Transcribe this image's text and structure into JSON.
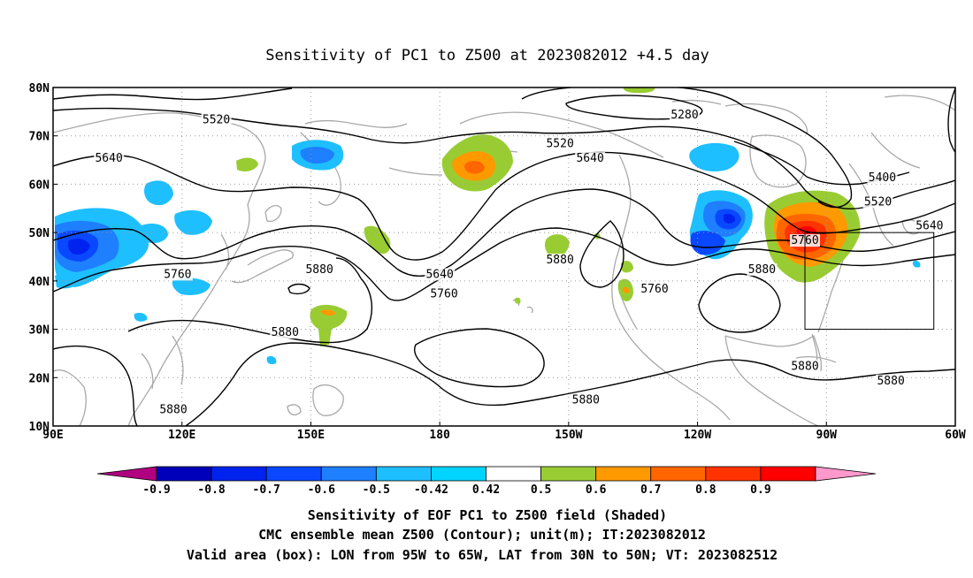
{
  "title": "Sensitivity of PC1 to Z500 at 2023082012 +4.5 day",
  "map": {
    "lon_range": [
      90,
      300
    ],
    "lat_range": [
      10,
      80
    ],
    "lat_ticks": [
      {
        "value": 80,
        "label": "80N"
      },
      {
        "value": 70,
        "label": "70N"
      },
      {
        "value": 60,
        "label": "60N"
      },
      {
        "value": 50,
        "label": "50N"
      },
      {
        "value": 40,
        "label": "40N"
      },
      {
        "value": 30,
        "label": "30N"
      },
      {
        "value": 20,
        "label": "20N"
      },
      {
        "value": 10,
        "label": "10N"
      }
    ],
    "lon_ticks": [
      {
        "value": 90,
        "label": "90E"
      },
      {
        "value": 120,
        "label": "120E"
      },
      {
        "value": 150,
        "label": "150E"
      },
      {
        "value": 180,
        "label": "180"
      },
      {
        "value": 210,
        "label": "150W"
      },
      {
        "value": 240,
        "label": "120W"
      },
      {
        "value": 270,
        "label": "90W"
      },
      {
        "value": 300,
        "label": "60W"
      }
    ],
    "grid": "dotted",
    "valid_box": {
      "lon_min": 265,
      "lon_max": 295,
      "lat_min": 30,
      "lat_max": 50
    },
    "contour_labels": [
      {
        "text": "5520",
        "lon": 128,
        "lat": 73
      },
      {
        "text": "5640",
        "lon": 103,
        "lat": 65
      },
      {
        "text": "5760",
        "lon": 119,
        "lat": 41
      },
      {
        "text": "5880",
        "lon": 152,
        "lat": 42
      },
      {
        "text": "5880",
        "lon": 144,
        "lat": 29
      },
      {
        "text": "5880",
        "lon": 118,
        "lat": 13
      },
      {
        "text": "5640",
        "lon": 180,
        "lat": 41
      },
      {
        "text": "5760",
        "lon": 181,
        "lat": 37
      },
      {
        "text": "5520",
        "lon": 208,
        "lat": 68
      },
      {
        "text": "5640",
        "lon": 215,
        "lat": 65
      },
      {
        "text": "5280",
        "lon": 237,
        "lat": 74
      },
      {
        "text": "5880",
        "lon": 208,
        "lat": 44
      },
      {
        "text": "5760",
        "lon": 230,
        "lat": 38
      },
      {
        "text": "5880",
        "lon": 255,
        "lat": 42
      },
      {
        "text": "5760",
        "lon": 265,
        "lat": 48
      },
      {
        "text": "5400",
        "lon": 283,
        "lat": 61
      },
      {
        "text": "5520",
        "lon": 282,
        "lat": 56
      },
      {
        "text": "5640",
        "lon": 294,
        "lat": 51
      },
      {
        "text": "5880",
        "lon": 265,
        "lat": 22
      },
      {
        "text": "5880",
        "lon": 285,
        "lat": 19
      },
      {
        "text": "5880",
        "lon": 214,
        "lat": 15
      }
    ]
  },
  "colorbar": {
    "labels": [
      "-0.9",
      "-0.8",
      "-0.7",
      "-0.6",
      "-0.5",
      "-0.42",
      "0.42",
      "0.5",
      "0.6",
      "0.7",
      "0.8",
      "0.9"
    ],
    "colors": [
      "#b0007f",
      "#0000bb",
      "#0022ee",
      "#0a48ff",
      "#1e7fff",
      "#1ebfff",
      "#00d4ff",
      "#ffffff",
      "#99cc33",
      "#ff9900",
      "#ff6600",
      "#ff3300",
      "#ff0000",
      "#ff99cc"
    ]
  },
  "footer": {
    "line1": "Sensitivity of EOF PC1 to Z500 field (Shaded)",
    "line2": "CMC ensemble mean Z500 (Contour); unit(m); IT:2023082012",
    "line3": "Valid area (box): LON from 95W to 65W, LAT from 30N to 50N; VT: 2023082512"
  }
}
